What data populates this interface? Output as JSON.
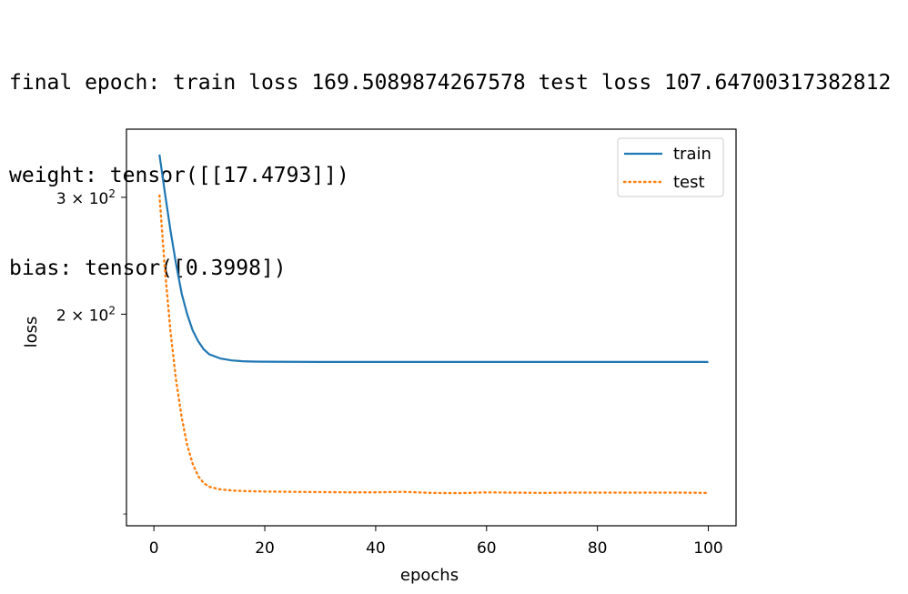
{
  "output": {
    "line1": "final epoch: train loss 169.5089874267578 test loss 107.64700317382812",
    "line2": "weight: tensor([[17.4793]])",
    "line3": "bias: tensor([0.3998])"
  },
  "colors": {
    "train": "#1f77b4",
    "test": "#ff7f0e",
    "axes": "#000000"
  },
  "chart_data": {
    "type": "line",
    "xlabel": "epochs",
    "ylabel": "loss",
    "yscale": "log",
    "xlim": [
      -4.95,
      105
    ],
    "ylim": [
      96,
      380
    ],
    "x_ticks": [
      0,
      20,
      40,
      60,
      80,
      100
    ],
    "x_tick_labels": [
      "0",
      "20",
      "40",
      "60",
      "80",
      "100"
    ],
    "y_ticks": [
      200,
      300
    ],
    "y_tick_labels": [
      {
        "base": "2 × 10",
        "exp": "2"
      },
      {
        "base": "3 × 10",
        "exp": "2"
      }
    ],
    "legend": {
      "position": "top-right"
    },
    "grid": false,
    "series": [
      {
        "name": "train",
        "style": "solid",
        "x": [
          1,
          2,
          3,
          4,
          5,
          6,
          7,
          8,
          9,
          10,
          12,
          14,
          16,
          18,
          20,
          30,
          40,
          50,
          60,
          70,
          80,
          90,
          100
        ],
        "y": [
          348,
          304,
          267,
          238,
          215,
          200,
          189,
          182,
          177,
          174,
          171.5,
          170.4,
          169.9,
          169.7,
          169.6,
          169.5,
          169.5,
          169.5,
          169.5,
          169.5,
          169.5,
          169.5,
          169.5
        ]
      },
      {
        "name": "test",
        "style": "dotted",
        "x": [
          1,
          2,
          3,
          4,
          5,
          6,
          7,
          8,
          9,
          10,
          12,
          14,
          16,
          18,
          20,
          25,
          30,
          35,
          40,
          45,
          50,
          55,
          60,
          65,
          70,
          75,
          80,
          85,
          90,
          95,
          100
        ],
        "y": [
          302,
          233,
          188,
          159,
          140,
          127,
          119,
          114,
          111.3,
          109.9,
          108.9,
          108.5,
          108.3,
          108.2,
          108.1,
          108.0,
          107.9,
          107.8,
          107.8,
          108.0,
          107.6,
          107.5,
          107.8,
          107.7,
          107.6,
          107.7,
          107.7,
          107.7,
          107.7,
          107.7,
          107.6
        ]
      }
    ]
  }
}
